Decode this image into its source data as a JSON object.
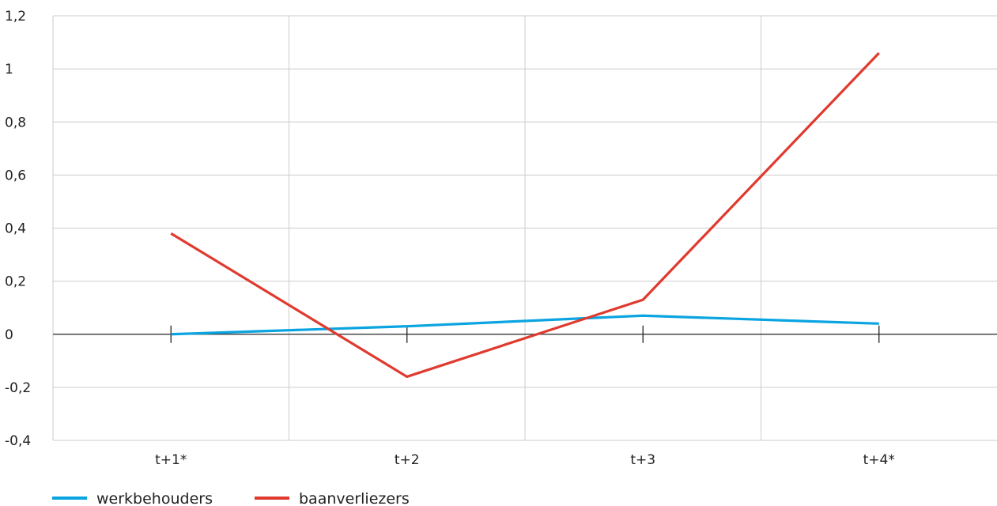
{
  "chart_data": {
    "type": "line",
    "categories": [
      "t+1*",
      "t+2",
      "t+3",
      "t+4*"
    ],
    "series": [
      {
        "name": "werkbehouders",
        "values": [
          0.0,
          0.03,
          0.07,
          0.04
        ],
        "color": "#0aa4e0"
      },
      {
        "name": "baanverliezers",
        "values": [
          0.38,
          -0.16,
          0.13,
          1.06
        ],
        "color": "#e03a2f"
      }
    ],
    "y_ticks": [
      {
        "value": 1.2,
        "label": "1,2"
      },
      {
        "value": 1.0,
        "label": "1"
      },
      {
        "value": 0.8,
        "label": "0,8"
      },
      {
        "value": 0.6,
        "label": "0,6"
      },
      {
        "value": 0.4,
        "label": "0,4"
      },
      {
        "value": 0.2,
        "label": "0,2"
      },
      {
        "value": 0.0,
        "label": "0"
      },
      {
        "value": -0.2,
        "label": "-0,2"
      },
      {
        "value": -0.4,
        "label": "-0,4"
      }
    ],
    "ylim": [
      -0.4,
      1.2
    ],
    "title": "",
    "xlabel": "",
    "ylabel": "",
    "grid": true,
    "legend_position": "bottom-left",
    "colors": {
      "grid": "#cccccc",
      "axis": "#222222"
    }
  }
}
